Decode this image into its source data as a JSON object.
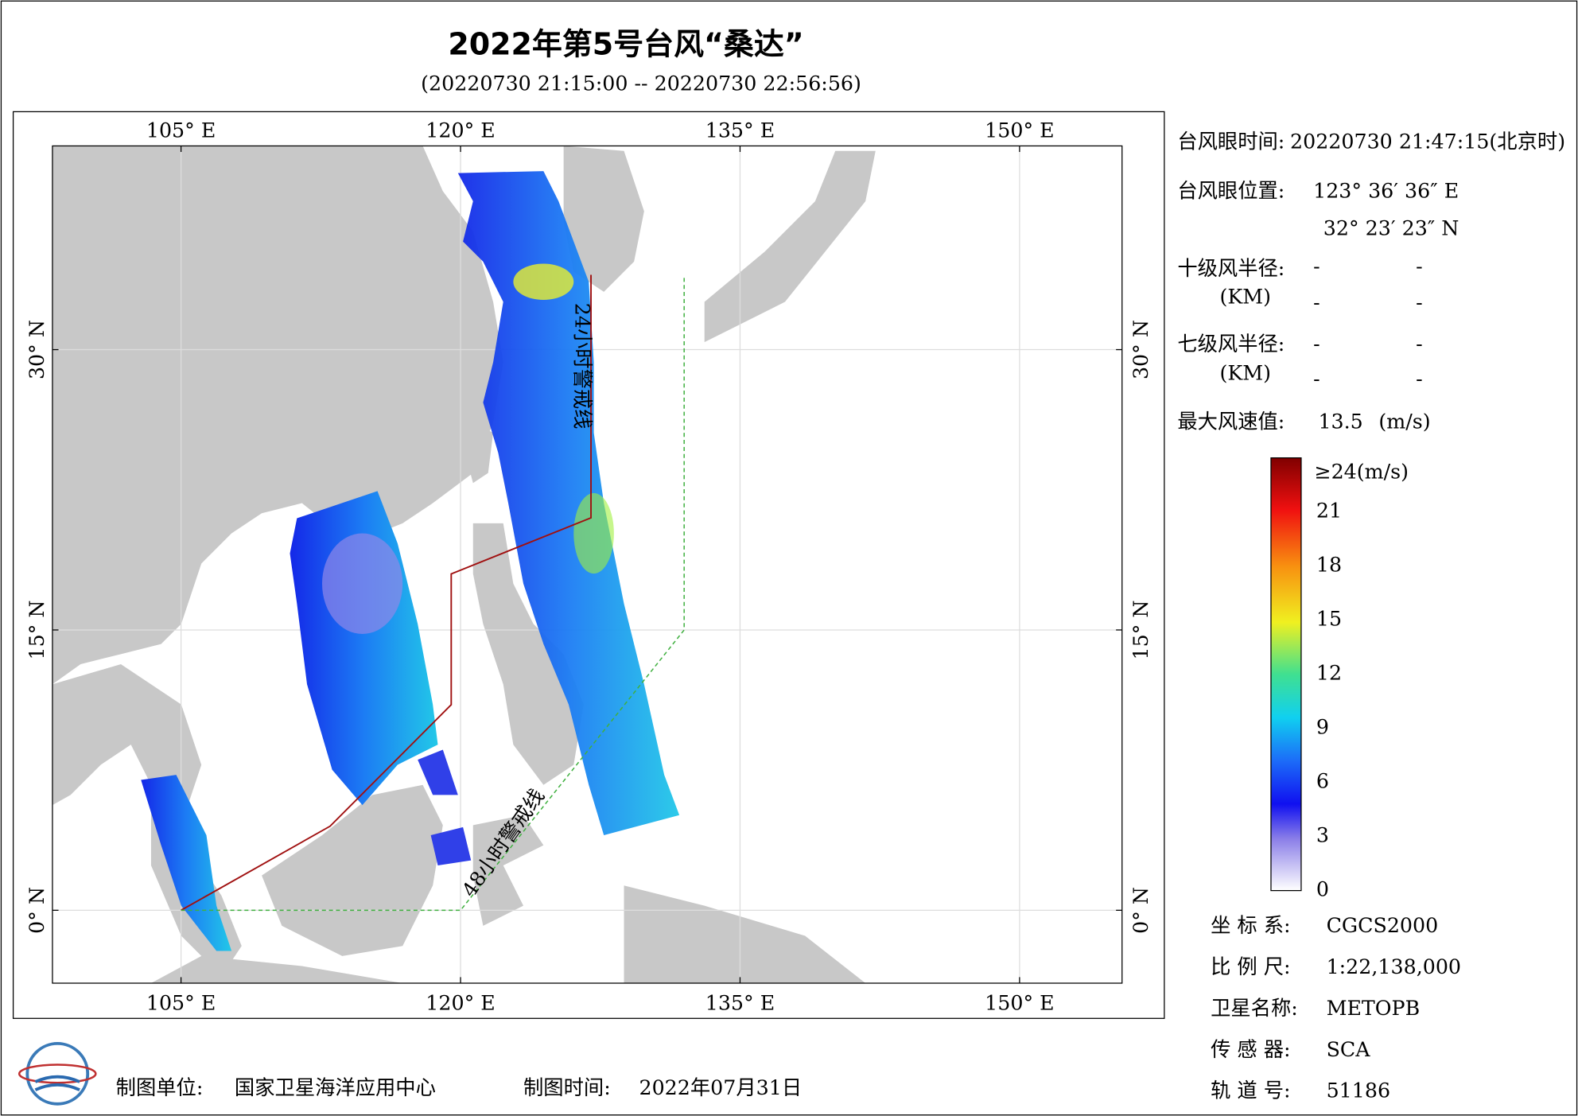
{
  "header": {
    "title": "2022年第5号台风“桑达”",
    "subtitle": "(20220730 21:15:00 -- 20220730 22:56:56)"
  },
  "map": {
    "xlim": [
      98.1,
      155.5
    ],
    "ylim": [
      -3.9,
      40.9
    ],
    "lon_ticks": [
      {
        "value": 105,
        "label": "105° E"
      },
      {
        "value": 120,
        "label": "120° E"
      },
      {
        "value": 135,
        "label": "135° E"
      },
      {
        "value": 150,
        "label": "150° E"
      }
    ],
    "lat_ticks": [
      {
        "value": 0,
        "label": "0° N"
      },
      {
        "value": 15,
        "label": "15° N"
      },
      {
        "value": 30,
        "label": "30° N"
      }
    ],
    "line_labels": [
      "24小时警戒线",
      "48小时警戒线"
    ]
  },
  "info": {
    "eye_time_label": "台风眼时间:",
    "eye_time": "20220730 21:47:15(北京时)",
    "eye_pos_label": "台风眼位置:",
    "eye_lon": "123° 36′ 36″ E",
    "eye_lat": "32° 23′ 23″ N",
    "r10_label": "十级风半径:",
    "r7_label": "七级风半径:",
    "km": "(KM)",
    "r10_values": [
      "-",
      "-",
      "-",
      "-"
    ],
    "r7_values": [
      "-",
      "-",
      "-",
      "-"
    ],
    "max_label": "最大风速值:",
    "max_value": 13.5,
    "max_unit": "(m/s)"
  },
  "colorbar": {
    "range": [
      0,
      24
    ],
    "max_label": "≥24(m/s)",
    "ticks": [
      0,
      3,
      6,
      9,
      12,
      15,
      18,
      21
    ]
  },
  "meta": {
    "rows": [
      [
        "坐 标 系:",
        "CGCS2000"
      ],
      [
        "比 例 尺:",
        "1:22,138,000"
      ],
      [
        "卫星名称:",
        "METOPB"
      ],
      [
        "传 感 器:",
        "SCA"
      ],
      [
        "轨 道 号:",
        "51186"
      ]
    ]
  },
  "footer": {
    "unit_label": "制图单位:",
    "unit": "国家卫星海洋应用中心",
    "time_label": "制图时间:",
    "time": "2022年07月31日"
  }
}
